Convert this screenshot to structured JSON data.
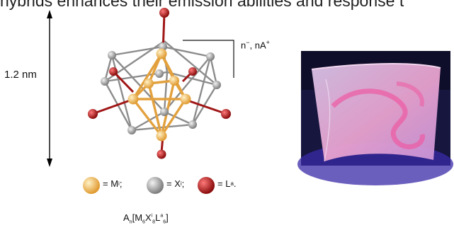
{
  "headline": "hybrids enhances their emission abilities and response t",
  "size_label": "1.2 nm",
  "charge_label": {
    "prefix": "n",
    "sup1": "−",
    "middle": ", nA",
    "sup2": "+"
  },
  "legend": {
    "m": {
      "eq": "= M",
      "sup": "i",
      "sep": ";"
    },
    "x": {
      "eq": "= X",
      "sup": "i",
      "sep": ";"
    },
    "l": {
      "eq": "= L",
      "sup": "a",
      "sep": "."
    }
  },
  "formula": {
    "a": "A",
    "a_sub": "n",
    "open": "[M",
    "m_sub": "6",
    "x": "X",
    "x_sup": "i",
    "x_sub": "8",
    "l": "L",
    "l_sup": "a",
    "l_sub": "6",
    "close": "]"
  },
  "colors": {
    "metal": "#e9a445",
    "halide": "#9a9a9a",
    "ligand": "#b11a1a",
    "photo_bg": "#1c1a4a",
    "film": "#e0a8d8"
  }
}
